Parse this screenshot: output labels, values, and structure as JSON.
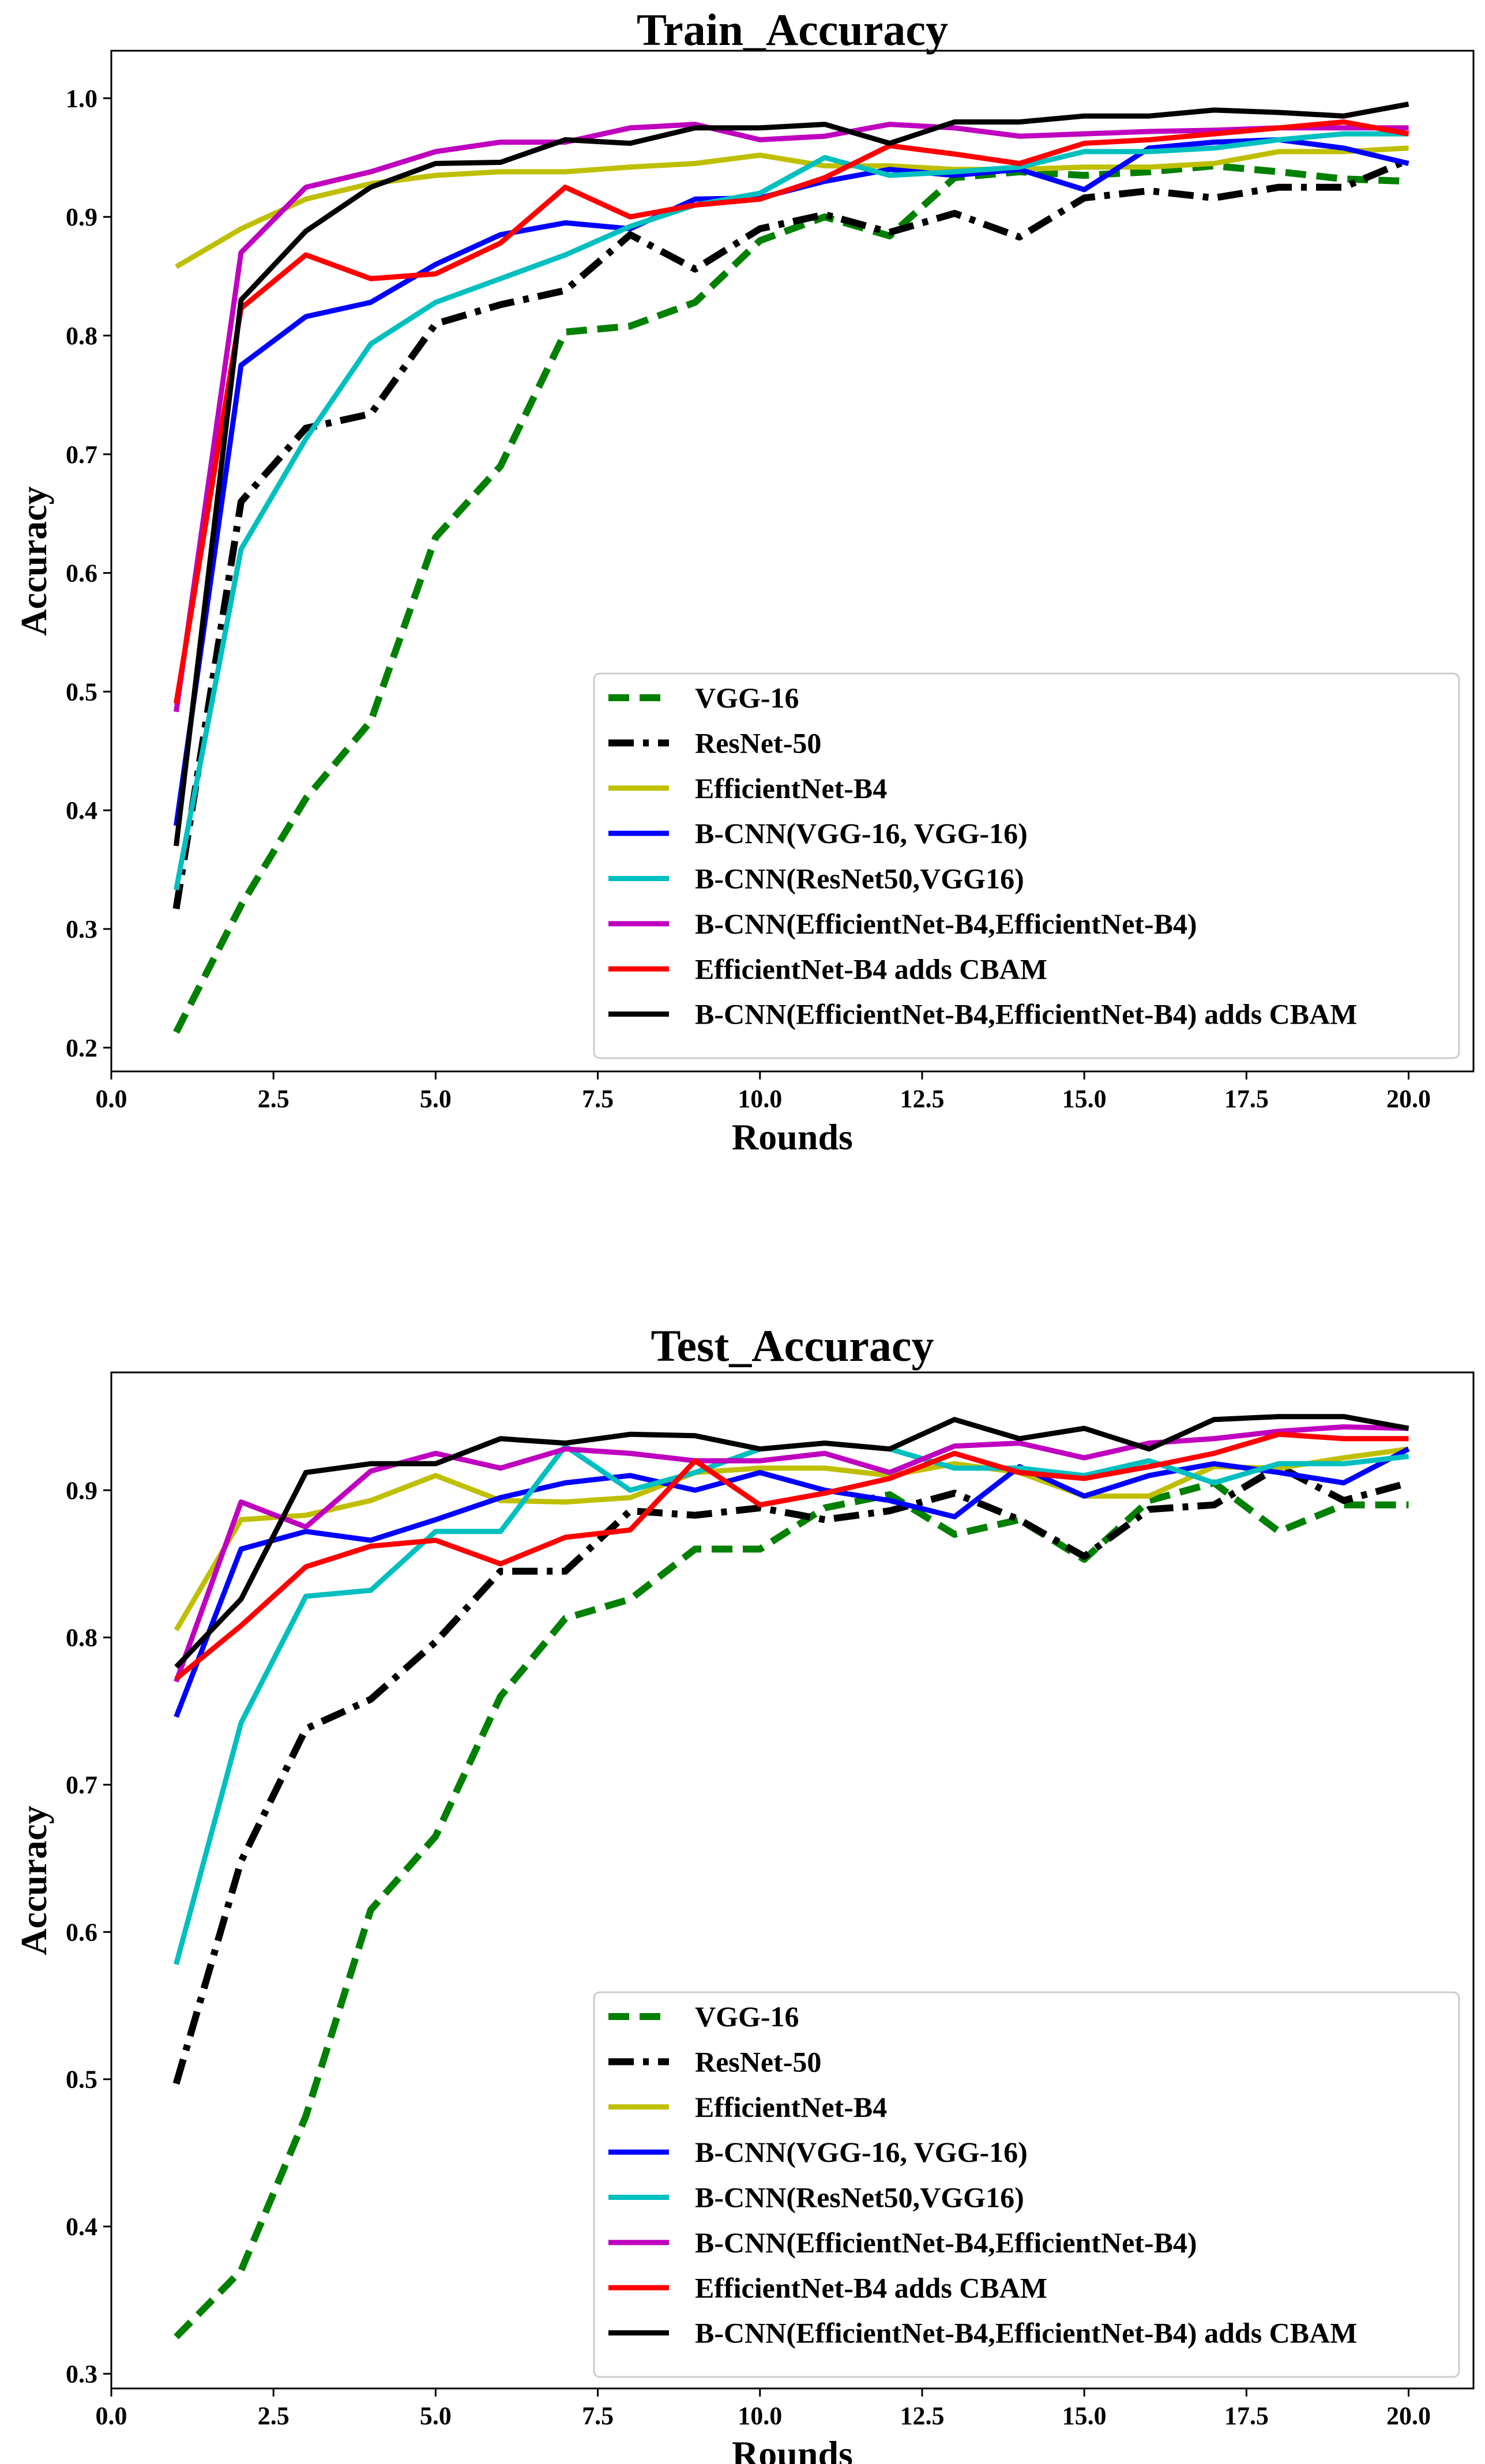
{
  "chart_data": [
    {
      "type": "line",
      "title": "Train_Accuracy",
      "xlabel": "Rounds",
      "ylabel": "Accuracy",
      "xlim": [
        0,
        21
      ],
      "ylim": [
        0.18,
        1.04
      ],
      "xticks": [
        0.0,
        2.5,
        5.0,
        7.5,
        10.0,
        12.5,
        15.0,
        17.5,
        20.0
      ],
      "xtick_labels": [
        "0.0",
        "2.5",
        "5.0",
        "7.5",
        "10.0",
        "12.5",
        "15.0",
        "17.5",
        "20.0"
      ],
      "yticks": [
        0.2,
        0.3,
        0.4,
        0.5,
        0.6,
        0.7,
        0.8,
        0.9,
        1.0
      ],
      "ytick_labels": [
        "0.2",
        "0.3",
        "0.4",
        "0.5",
        "0.6",
        "0.7",
        "0.8",
        "0.9",
        "1.0"
      ],
      "legend_position": "lower-right",
      "x": [
        1,
        2,
        3,
        4,
        5,
        6,
        7,
        8,
        9,
        10,
        11,
        12,
        13,
        14,
        15,
        16,
        17,
        18,
        19,
        20
      ],
      "series": [
        {
          "name": "VGG-16",
          "color": "#008000",
          "style": "dashed",
          "values": [
            0.213,
            0.32,
            0.41,
            0.475,
            0.63,
            0.69,
            0.803,
            0.808,
            0.828,
            0.88,
            0.9,
            0.884,
            0.933,
            0.938,
            0.935,
            0.938,
            0.943,
            0.938,
            0.932,
            0.93
          ]
        },
        {
          "name": "ResNet-50",
          "color": "#000000",
          "style": "dashdot",
          "values": [
            0.317,
            0.66,
            0.722,
            0.734,
            0.81,
            0.826,
            0.838,
            0.885,
            0.856,
            0.89,
            0.902,
            0.887,
            0.903,
            0.883,
            0.916,
            0.922,
            0.916,
            0.925,
            0.925,
            0.948
          ]
        },
        {
          "name": "EfficientNet-B4",
          "color": "#bfbf00",
          "style": "solid",
          "values": [
            0.858,
            0.89,
            0.915,
            0.928,
            0.935,
            0.938,
            0.938,
            0.942,
            0.945,
            0.952,
            0.943,
            0.943,
            0.94,
            0.94,
            0.942,
            0.942,
            0.945,
            0.955,
            0.955,
            0.958
          ]
        },
        {
          "name": "B-CNN(VGG-16, VGG-16)",
          "color": "#0000ff",
          "style": "solid",
          "values": [
            0.387,
            0.775,
            0.816,
            0.828,
            0.86,
            0.885,
            0.895,
            0.89,
            0.915,
            0.916,
            0.93,
            0.94,
            0.935,
            0.94,
            0.923,
            0.958,
            0.963,
            0.965,
            0.958,
            0.945
          ]
        },
        {
          "name": "B-CNN(ResNet50,VGG16)",
          "color": "#00bfbf",
          "style": "solid",
          "values": [
            0.333,
            0.62,
            0.713,
            0.793,
            0.828,
            0.848,
            0.868,
            0.892,
            0.91,
            0.92,
            0.95,
            0.935,
            0.938,
            0.942,
            0.955,
            0.955,
            0.958,
            0.965,
            0.97,
            0.97
          ]
        },
        {
          "name": "B-CNN(EfficientNet-B4,EfficientNet-B4)",
          "color": "#bf00bf",
          "style": "solid",
          "values": [
            0.483,
            0.87,
            0.925,
            0.938,
            0.955,
            0.963,
            0.963,
            0.975,
            0.978,
            0.965,
            0.968,
            0.978,
            0.975,
            0.968,
            0.97,
            0.972,
            0.973,
            0.975,
            0.975,
            0.975
          ]
        },
        {
          "name": "EfficientNet-B4 adds CBAM",
          "color": "#ff0000",
          "style": "solid",
          "values": [
            0.49,
            0.823,
            0.868,
            0.848,
            0.852,
            0.878,
            0.925,
            0.9,
            0.91,
            0.915,
            0.933,
            0.96,
            0.953,
            0.945,
            0.962,
            0.965,
            0.97,
            0.975,
            0.98,
            0.97
          ]
        },
        {
          "name": "B-CNN(EfficientNet-B4,EfficientNet-B4) adds CBAM",
          "color": "#000000",
          "style": "solid",
          "values": [
            0.37,
            0.83,
            0.888,
            0.925,
            0.945,
            0.946,
            0.965,
            0.962,
            0.975,
            0.975,
            0.978,
            0.962,
            0.98,
            0.98,
            0.985,
            0.985,
            0.99,
            0.988,
            0.985,
            0.995
          ]
        }
      ],
      "legend_labels": [
        "VGG-16",
        "ResNet-50",
        "EfficientNet-B4",
        "B-CNN(VGG-16, VGG-16)",
        "B-CNN(ResNet50,VGG16)",
        "B-CNN(EfficientNet-B4,EfficientNet-B4)",
        "EfficientNet-B4 adds CBAM",
        "B-CNN(EfficientNet-B4,EfficientNet-B4) adds CBAM"
      ]
    },
    {
      "type": "line",
      "title": "Test_Accuracy",
      "xlabel": "Rounds",
      "ylabel": "Accuracy",
      "xlim": [
        0,
        21
      ],
      "ylim": [
        0.29,
        0.98
      ],
      "xticks": [
        0.0,
        2.5,
        5.0,
        7.5,
        10.0,
        12.5,
        15.0,
        17.5,
        20.0
      ],
      "xtick_labels": [
        "0.0",
        "2.5",
        "5.0",
        "7.5",
        "10.0",
        "12.5",
        "15.0",
        "17.5",
        "20.0"
      ],
      "yticks": [
        0.3,
        0.4,
        0.5,
        0.6,
        0.7,
        0.8,
        0.9
      ],
      "ytick_labels": [
        "0.3",
        "0.4",
        "0.5",
        "0.6",
        "0.7",
        "0.8",
        "0.9"
      ],
      "legend_position": "lower-right",
      "x": [
        1,
        2,
        3,
        4,
        5,
        6,
        7,
        8,
        9,
        10,
        11,
        12,
        13,
        14,
        15,
        16,
        17,
        18,
        19,
        20
      ],
      "series": [
        {
          "name": "VGG-16",
          "color": "#008000",
          "style": "dashed",
          "values": [
            0.325,
            0.37,
            0.475,
            0.615,
            0.665,
            0.76,
            0.813,
            0.826,
            0.86,
            0.86,
            0.888,
            0.897,
            0.87,
            0.88,
            0.853,
            0.893,
            0.905,
            0.872,
            0.89,
            0.89
          ]
        },
        {
          "name": "ResNet-50",
          "color": "#000000",
          "style": "dashdot",
          "values": [
            0.497,
            0.648,
            0.738,
            0.758,
            0.797,
            0.845,
            0.845,
            0.886,
            0.883,
            0.888,
            0.88,
            0.886,
            0.898,
            0.88,
            0.855,
            0.887,
            0.89,
            0.916,
            0.893,
            0.905
          ]
        },
        {
          "name": "EfficientNet-B4",
          "color": "#bfbf00",
          "style": "solid",
          "values": [
            0.805,
            0.88,
            0.883,
            0.893,
            0.91,
            0.893,
            0.892,
            0.895,
            0.912,
            0.915,
            0.915,
            0.91,
            0.918,
            0.912,
            0.896,
            0.896,
            0.916,
            0.915,
            0.922,
            0.928
          ]
        },
        {
          "name": "B-CNN(VGG-16, VGG-16)",
          "color": "#0000ff",
          "style": "solid",
          "values": [
            0.746,
            0.86,
            0.872,
            0.866,
            0.88,
            0.895,
            0.905,
            0.91,
            0.9,
            0.912,
            0.9,
            0.893,
            0.882,
            0.916,
            0.896,
            0.91,
            0.918,
            0.912,
            0.905,
            0.928
          ]
        },
        {
          "name": "B-CNN(ResNet50,VGG16)",
          "color": "#00bfbf",
          "style": "solid",
          "values": [
            0.578,
            0.742,
            0.828,
            0.832,
            0.872,
            0.872,
            0.93,
            0.9,
            0.912,
            0.928,
            0.932,
            0.928,
            0.915,
            0.915,
            0.91,
            0.92,
            0.905,
            0.918,
            0.918,
            0.923
          ]
        },
        {
          "name": "B-CNN(EfficientNet-B4,EfficientNet-B4)",
          "color": "#bf00bf",
          "style": "solid",
          "values": [
            0.77,
            0.892,
            0.875,
            0.913,
            0.925,
            0.915,
            0.928,
            0.925,
            0.92,
            0.92,
            0.925,
            0.912,
            0.93,
            0.932,
            0.922,
            0.932,
            0.935,
            0.94,
            0.943,
            0.942
          ]
        },
        {
          "name": "EfficientNet-B4 adds CBAM",
          "color": "#ff0000",
          "style": "solid",
          "values": [
            0.772,
            0.808,
            0.848,
            0.862,
            0.866,
            0.85,
            0.868,
            0.873,
            0.92,
            0.89,
            0.898,
            0.908,
            0.925,
            0.912,
            0.908,
            0.916,
            0.925,
            0.938,
            0.935,
            0.935
          ]
        },
        {
          "name": "B-CNN(EfficientNet-B4,EfficientNet-B4) adds CBAM",
          "color": "#000000",
          "style": "solid",
          "values": [
            0.78,
            0.826,
            0.912,
            0.918,
            0.918,
            0.935,
            0.932,
            0.938,
            0.937,
            0.928,
            0.932,
            0.928,
            0.948,
            0.935,
            0.942,
            0.928,
            0.948,
            0.95,
            0.95,
            0.942
          ]
        }
      ],
      "legend_labels": [
        "VGG-16",
        "ResNet-50",
        "EfficientNet-B4",
        "B-CNN(VGG-16, VGG-16)",
        "B-CNN(ResNet50,VGG16)",
        "B-CNN(EfficientNet-B4,EfficientNet-B4)",
        "EfficientNet-B4 adds CBAM",
        "B-CNN(EfficientNet-B4,EfficientNet-B4) adds CBAM"
      ]
    }
  ]
}
